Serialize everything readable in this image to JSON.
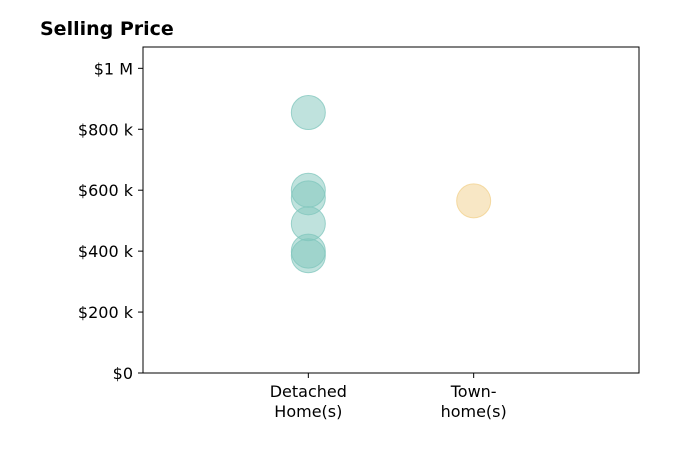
{
  "chart_data": {
    "type": "scatter",
    "title": "Selling Price",
    "xlabel": "",
    "ylabel": "",
    "categories": [
      {
        "lines": [
          "Detached",
          "Home(s)"
        ]
      },
      {
        "lines": [
          "Town-",
          "home(s)"
        ]
      }
    ],
    "xlim": [
      -1,
      2
    ],
    "ylim": [
      0,
      1070000
    ],
    "y_ticks": [
      {
        "value": 0,
        "label": "$0"
      },
      {
        "value": 200000,
        "label": "$200 k"
      },
      {
        "value": 400000,
        "label": "$400 k"
      },
      {
        "value": 600000,
        "label": "$600 k"
      },
      {
        "value": 800000,
        "label": "$800 k"
      },
      {
        "value": 1000000,
        "label": "$1 M"
      }
    ],
    "grid": false,
    "series": [
      {
        "category_index": 0,
        "color": "#7fc6bc",
        "values": [
          855000,
          600000,
          575000,
          490000,
          400000,
          385000
        ]
      },
      {
        "category_index": 1,
        "color": "#f1d08b",
        "values": [
          565000
        ]
      }
    ]
  }
}
